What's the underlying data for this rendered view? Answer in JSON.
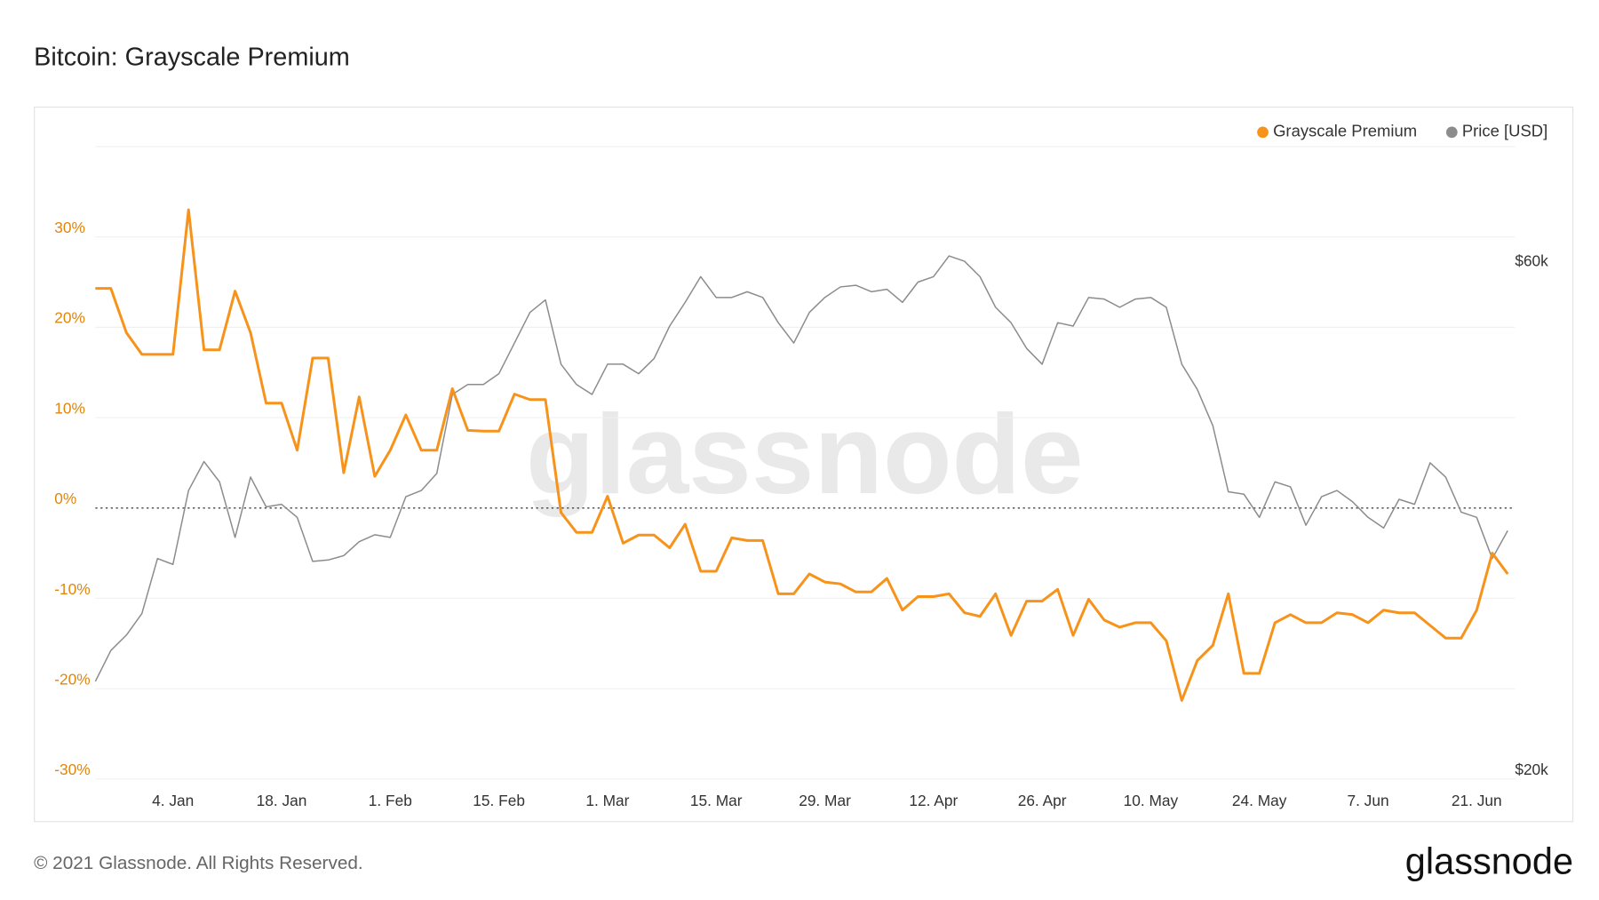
{
  "chart_data": {
    "type": "line",
    "title": "Bitcoin: Grayscale Premium",
    "watermark": "glassnode",
    "categories": [
      null,
      null,
      null,
      null,
      null,
      "4. Jan",
      null,
      null,
      null,
      null,
      null,
      null,
      "18. Jan",
      null,
      null,
      null,
      null,
      null,
      null,
      "1. Feb",
      null,
      null,
      null,
      null,
      null,
      null,
      "15. Feb",
      null,
      null,
      null,
      null,
      null,
      null,
      "1. Mar",
      null,
      null,
      null,
      null,
      null,
      null,
      "15. Mar",
      null,
      null,
      null,
      null,
      null,
      null,
      "29. Mar",
      null,
      null,
      null,
      null,
      null,
      null,
      "12. Apr",
      null,
      null,
      null,
      null,
      null,
      null,
      "26. Apr",
      null,
      null,
      null,
      null,
      null,
      null,
      "10. May",
      null,
      null,
      null,
      null,
      null,
      null,
      "24. May",
      null,
      null,
      null,
      null,
      null,
      null,
      "7. Jun",
      null,
      null,
      null,
      null,
      null,
      null,
      "21. Jun",
      null,
      null
    ],
    "series": [
      {
        "name": "Grayscale Premium",
        "color": "#f7931a",
        "axis": "y",
        "values": [
          24.3,
          24.3,
          19.4,
          17,
          17,
          17,
          33,
          17.5,
          17.5,
          24,
          19.4,
          11.6,
          11.6,
          6.4,
          16.6,
          16.6,
          3.9,
          12.3,
          3.5,
          6.4,
          10.3,
          6.4,
          6.4,
          13.2,
          8.6,
          8.5,
          8.5,
          12.6,
          12,
          12,
          -0.5,
          -2.7,
          -2.7,
          1.3,
          -3.9,
          -3,
          -3,
          -4.4,
          -1.8,
          -7,
          -7,
          -3.3,
          -3.6,
          -3.6,
          -9.5,
          -9.5,
          -7.3,
          -8.2,
          -8.4,
          -9.3,
          -9.3,
          -7.8,
          -11.3,
          -9.8,
          -9.8,
          -9.5,
          -11.6,
          -12,
          -9.5,
          -14.1,
          -10.3,
          -10.3,
          -9,
          -14.1,
          -10.1,
          -12.4,
          -13.2,
          -12.7,
          -12.7,
          -14.7,
          -21.3,
          -16.9,
          -15.2,
          -9.5,
          -18.3,
          -18.3,
          -12.7,
          -11.8,
          -12.7,
          -12.7,
          -11.6,
          -11.8,
          -12.7,
          -11.3,
          -11.6,
          -11.6,
          -13,
          -14.4,
          -14.4,
          -11.3,
          -5,
          -7.3
        ]
      },
      {
        "name": "Price [USD]",
        "color": "#8c8c8c",
        "axis": "y2",
        "values": [
          24700,
          26400,
          27300,
          28600,
          32200,
          31800,
          37300,
          39700,
          38000,
          33700,
          38400,
          36000,
          36200,
          35200,
          32000,
          32100,
          32400,
          33400,
          33900,
          33700,
          36800,
          37300,
          38700,
          45900,
          46900,
          46900,
          48000,
          51300,
          54800,
          56300,
          49000,
          46900,
          45900,
          49000,
          49000,
          48000,
          49600,
          53200,
          56000,
          59200,
          56600,
          56600,
          57300,
          56600,
          53600,
          51300,
          54800,
          56600,
          57900,
          58100,
          57300,
          57600,
          56000,
          58500,
          59200,
          61900,
          61200,
          59200,
          55400,
          53600,
          50700,
          49000,
          53600,
          53200,
          56600,
          56400,
          55400,
          56400,
          56600,
          55400,
          49000,
          46400,
          42900,
          37200,
          37000,
          35200,
          38000,
          37600,
          34600,
          36800,
          37300,
          36400,
          35200,
          34400,
          36600,
          36200,
          39600,
          38400,
          35600,
          35200,
          32200,
          34200
        ]
      }
    ],
    "ylim": [
      -30,
      40
    ],
    "yticks": [
      {
        "value": -30,
        "label": "-30%"
      },
      {
        "value": -20,
        "label": "-20%"
      },
      {
        "value": -10,
        "label": "-10%"
      },
      {
        "value": 0,
        "label": "0%"
      },
      {
        "value": 10,
        "label": "10%"
      },
      {
        "value": 20,
        "label": "20%"
      },
      {
        "value": 30,
        "label": "30%"
      }
    ],
    "y2lim": [
      20000,
      78400
    ],
    "y2ticks": [
      {
        "value": 20000,
        "label": "$20k"
      },
      {
        "value": 60000,
        "label": "$60k"
      }
    ],
    "y2log": true,
    "grid": true,
    "legend": "top-right"
  },
  "footer": "© 2021 Glassnode. All Rights Reserved.",
  "brand": "glassnode"
}
